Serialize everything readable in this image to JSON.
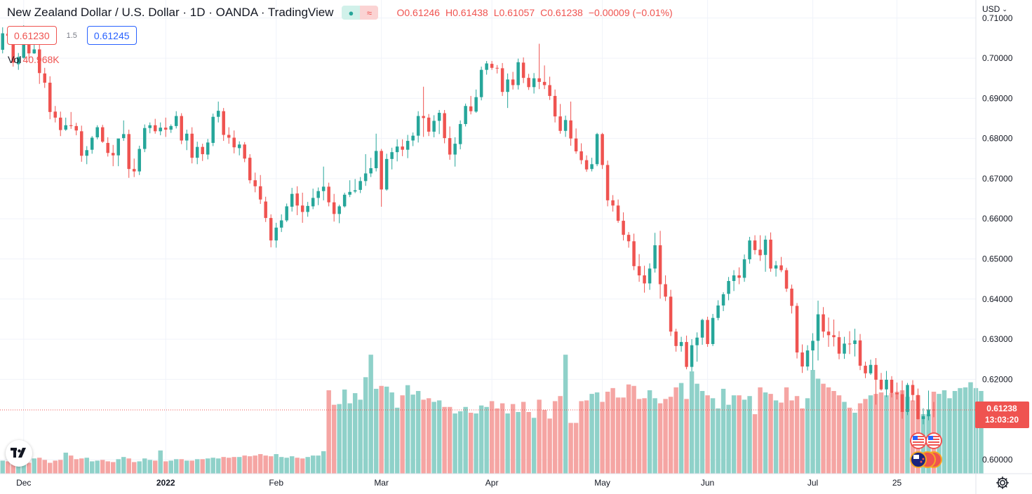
{
  "header": {
    "symbol_title": "New Zealand Dollar / U.S. Dollar · 1D · OANDA · TradingView",
    "ohlc": {
      "o_label": "O",
      "o_value": "0.61246",
      "h_label": "H",
      "h_value": "0.61438",
      "l_label": "L",
      "l_value": "0.61057",
      "c_label": "C",
      "c_value": "0.61238",
      "change": "−0.00009 (−0.01%)"
    },
    "status_icons": [
      "market-open-dot-icon",
      "wave-icon"
    ]
  },
  "quotes": {
    "sell_price": "0.61230",
    "spread": "1.5",
    "buy_price": "0.61245"
  },
  "volume_legend": {
    "label": "Vol",
    "value": "40.968K"
  },
  "currency_selector": {
    "label": "USD"
  },
  "price_axis": {
    "ticks": [
      "0.71000",
      "0.70000",
      "0.69000",
      "0.68000",
      "0.67000",
      "0.66000",
      "0.65000",
      "0.64000",
      "0.63000",
      "0.62000",
      "0.60000"
    ],
    "tick_values": [
      0.71,
      0.7,
      0.69,
      0.68,
      0.67,
      0.66,
      0.65,
      0.64,
      0.63,
      0.62,
      0.6
    ],
    "last_price_label": "0.61238",
    "countdown_label": "13:03:20",
    "last_price": 0.61238
  },
  "time_axis": {
    "labels": [
      "Dec",
      "2022",
      "Feb",
      "Mar",
      "Apr",
      "May",
      "Jun",
      "Jul",
      "25"
    ],
    "label_index": [
      4,
      31,
      52,
      72,
      93,
      114,
      134,
      154,
      170
    ]
  },
  "colors": {
    "up": "#26a69a",
    "down": "#ef5350",
    "up_vol": "#8fd1c9",
    "down_vol": "#f5a5a3",
    "grid": "#f0f3fa",
    "axis_text": "#131722"
  },
  "chart_data": {
    "type": "candlestick",
    "title": "New Zealand Dollar / U.S. Dollar",
    "interval": "1D",
    "y_range": [
      0.5965,
      0.7145
    ],
    "x_range": [
      -0.5,
      185
    ],
    "grid": true,
    "candles": [
      [
        0.7021,
        0.7077,
        0.7012,
        0.7062
      ],
      [
        0.7061,
        0.7074,
        0.7052,
        0.7056
      ],
      [
        0.7057,
        0.7064,
        0.6979,
        0.6989
      ],
      [
        0.6985,
        0.7013,
        0.6971,
        0.7003
      ],
      [
        0.7001,
        0.7082,
        0.6999,
        0.7058
      ],
      [
        0.7058,
        0.7063,
        0.6997,
        0.7012
      ],
      [
        0.7012,
        0.7043,
        0.7011,
        0.7022
      ],
      [
        0.7022,
        0.7045,
        0.6936,
        0.6963
      ],
      [
        0.6962,
        0.6976,
        0.6926,
        0.6939
      ],
      [
        0.6939,
        0.6955,
        0.6848,
        0.6866
      ],
      [
        0.6867,
        0.6881,
        0.684,
        0.6852
      ],
      [
        0.6852,
        0.6867,
        0.6806,
        0.6821
      ],
      [
        0.6822,
        0.6852,
        0.6819,
        0.6833
      ],
      [
        0.6833,
        0.6866,
        0.6824,
        0.6831
      ],
      [
        0.6831,
        0.6839,
        0.6808,
        0.682
      ],
      [
        0.6818,
        0.6832,
        0.6742,
        0.6757
      ],
      [
        0.6757,
        0.6781,
        0.6736,
        0.6771
      ],
      [
        0.6772,
        0.6806,
        0.6762,
        0.6802
      ],
      [
        0.6803,
        0.6833,
        0.6798,
        0.6828
      ],
      [
        0.6828,
        0.6834,
        0.6789,
        0.6792
      ],
      [
        0.6789,
        0.6803,
        0.6755,
        0.6764
      ],
      [
        0.6764,
        0.6784,
        0.6731,
        0.6758
      ],
      [
        0.6758,
        0.6795,
        0.6731,
        0.68
      ],
      [
        0.6801,
        0.6845,
        0.6794,
        0.6811
      ],
      [
        0.6811,
        0.6822,
        0.6702,
        0.6724
      ],
      [
        0.6724,
        0.675,
        0.6704,
        0.6718
      ],
      [
        0.6718,
        0.6782,
        0.6709,
        0.6774
      ],
      [
        0.6774,
        0.6835,
        0.6766,
        0.6826
      ],
      [
        0.6826,
        0.684,
        0.6813,
        0.6833
      ],
      [
        0.6833,
        0.6849,
        0.6812,
        0.6818
      ],
      [
        0.6818,
        0.684,
        0.6808,
        0.6827
      ],
      [
        0.6827,
        0.6852,
        0.6804,
        0.6822
      ],
      [
        0.6822,
        0.6835,
        0.6814,
        0.6831
      ],
      [
        0.6831,
        0.6868,
        0.6825,
        0.6856
      ],
      [
        0.6856,
        0.6863,
        0.6786,
        0.6795
      ],
      [
        0.6795,
        0.6822,
        0.6771,
        0.6812
      ],
      [
        0.6812,
        0.6828,
        0.6738,
        0.6752
      ],
      [
        0.6752,
        0.6792,
        0.6736,
        0.6779
      ],
      [
        0.6779,
        0.6787,
        0.6744,
        0.6761
      ],
      [
        0.676,
        0.6799,
        0.6748,
        0.679
      ],
      [
        0.6789,
        0.6862,
        0.6781,
        0.6854
      ],
      [
        0.6854,
        0.6892,
        0.684,
        0.6869
      ],
      [
        0.6868,
        0.6876,
        0.6794,
        0.6809
      ],
      [
        0.6809,
        0.6828,
        0.6787,
        0.6802
      ],
      [
        0.6802,
        0.682,
        0.6763,
        0.6778
      ],
      [
        0.6776,
        0.6793,
        0.6758,
        0.6785
      ],
      [
        0.6785,
        0.6791,
        0.6741,
        0.675
      ],
      [
        0.6752,
        0.6761,
        0.6688,
        0.6696
      ],
      [
        0.6696,
        0.6715,
        0.6666,
        0.6681
      ],
      [
        0.6681,
        0.6709,
        0.6637,
        0.6648
      ],
      [
        0.6643,
        0.6655,
        0.6592,
        0.6602
      ],
      [
        0.6602,
        0.6611,
        0.6529,
        0.6546
      ],
      [
        0.6546,
        0.659,
        0.6528,
        0.6578
      ],
      [
        0.6578,
        0.6611,
        0.6567,
        0.6596
      ],
      [
        0.6596,
        0.6638,
        0.6592,
        0.6631
      ],
      [
        0.663,
        0.6677,
        0.6618,
        0.6662
      ],
      [
        0.6663,
        0.6681,
        0.6609,
        0.6633
      ],
      [
        0.6633,
        0.6665,
        0.659,
        0.6617
      ],
      [
        0.6617,
        0.6642,
        0.6605,
        0.6632
      ],
      [
        0.6631,
        0.6675,
        0.6624,
        0.6652
      ],
      [
        0.6652,
        0.6678,
        0.6634,
        0.6669
      ],
      [
        0.6669,
        0.673,
        0.6646,
        0.668
      ],
      [
        0.668,
        0.669,
        0.6631,
        0.6641
      ],
      [
        0.6641,
        0.6662,
        0.6593,
        0.6612
      ],
      [
        0.6612,
        0.6635,
        0.6589,
        0.6631
      ],
      [
        0.6631,
        0.6665,
        0.6628,
        0.666
      ],
      [
        0.666,
        0.6696,
        0.6654,
        0.6667
      ],
      [
        0.6668,
        0.6699,
        0.6664,
        0.6671
      ],
      [
        0.6672,
        0.6704,
        0.6664,
        0.6694
      ],
      [
        0.6694,
        0.6761,
        0.6682,
        0.6713
      ],
      [
        0.6713,
        0.6752,
        0.6704,
        0.6726
      ],
      [
        0.6726,
        0.6812,
        0.6718,
        0.6769
      ],
      [
        0.6769,
        0.6774,
        0.663,
        0.6673
      ],
      [
        0.6673,
        0.6762,
        0.667,
        0.6749
      ],
      [
        0.6749,
        0.6777,
        0.6723,
        0.6766
      ],
      [
        0.6766,
        0.6798,
        0.6743,
        0.678
      ],
      [
        0.678,
        0.6798,
        0.6756,
        0.6772
      ],
      [
        0.6772,
        0.6809,
        0.6751,
        0.6794
      ],
      [
        0.6795,
        0.6815,
        0.6781,
        0.6807
      ],
      [
        0.6807,
        0.6868,
        0.679,
        0.6856
      ],
      [
        0.6856,
        0.6929,
        0.6804,
        0.6851
      ],
      [
        0.6852,
        0.6861,
        0.6806,
        0.6817
      ],
      [
        0.6817,
        0.6858,
        0.6803,
        0.6844
      ],
      [
        0.6844,
        0.6871,
        0.6811,
        0.6864
      ],
      [
        0.6863,
        0.6871,
        0.6788,
        0.6801
      ],
      [
        0.6801,
        0.683,
        0.6747,
        0.676
      ],
      [
        0.676,
        0.6803,
        0.673,
        0.6787
      ],
      [
        0.6786,
        0.6845,
        0.6773,
        0.6836
      ],
      [
        0.6836,
        0.6887,
        0.683,
        0.6881
      ],
      [
        0.688,
        0.6906,
        0.686,
        0.6868
      ],
      [
        0.6867,
        0.6922,
        0.6864,
        0.6903
      ],
      [
        0.6903,
        0.6979,
        0.6895,
        0.6971
      ],
      [
        0.6971,
        0.6993,
        0.6959,
        0.6987
      ],
      [
        0.6986,
        0.6993,
        0.6971,
        0.6976
      ],
      [
        0.6976,
        0.6983,
        0.6962,
        0.6975
      ],
      [
        0.6975,
        0.6988,
        0.6906,
        0.6916
      ],
      [
        0.6916,
        0.6962,
        0.6876,
        0.6947
      ],
      [
        0.6947,
        0.6966,
        0.6922,
        0.6933
      ],
      [
        0.6933,
        0.6999,
        0.6922,
        0.699
      ],
      [
        0.6989,
        0.7002,
        0.6938,
        0.6951
      ],
      [
        0.6951,
        0.6961,
        0.6921,
        0.6928
      ],
      [
        0.6928,
        0.6963,
        0.6912,
        0.695
      ],
      [
        0.695,
        0.7036,
        0.6923,
        0.6941
      ],
      [
        0.6941,
        0.6982,
        0.6923,
        0.6933
      ],
      [
        0.6933,
        0.6954,
        0.6896,
        0.6906
      ],
      [
        0.6906,
        0.6922,
        0.684,
        0.6855
      ],
      [
        0.6855,
        0.6886,
        0.6812,
        0.6819
      ],
      [
        0.6819,
        0.6857,
        0.6804,
        0.6846
      ],
      [
        0.6845,
        0.6892,
        0.6782,
        0.68
      ],
      [
        0.68,
        0.6825,
        0.6762,
        0.6768
      ],
      [
        0.6768,
        0.6788,
        0.6736,
        0.6746
      ],
      [
        0.6746,
        0.6758,
        0.6717,
        0.6723
      ],
      [
        0.6724,
        0.6752,
        0.6718,
        0.6736
      ],
      [
        0.6736,
        0.6814,
        0.6731,
        0.6811
      ],
      [
        0.6811,
        0.6814,
        0.6724,
        0.6734
      ],
      [
        0.6734,
        0.6745,
        0.6631,
        0.6646
      ],
      [
        0.6646,
        0.6659,
        0.6618,
        0.6633
      ],
      [
        0.6633,
        0.6648,
        0.659,
        0.6595
      ],
      [
        0.6595,
        0.6616,
        0.6546,
        0.656
      ],
      [
        0.656,
        0.6567,
        0.6528,
        0.6544
      ],
      [
        0.6544,
        0.6563,
        0.6472,
        0.6482
      ],
      [
        0.6482,
        0.6512,
        0.6443,
        0.6459
      ],
      [
        0.6459,
        0.6483,
        0.6416,
        0.6439
      ],
      [
        0.6439,
        0.6489,
        0.6423,
        0.6476
      ],
      [
        0.6476,
        0.6565,
        0.6466,
        0.6534
      ],
      [
        0.6534,
        0.657,
        0.6401,
        0.6437
      ],
      [
        0.6437,
        0.6459,
        0.6395,
        0.6406
      ],
      [
        0.6406,
        0.6423,
        0.6308,
        0.6319
      ],
      [
        0.6319,
        0.6326,
        0.6269,
        0.6283
      ],
      [
        0.6283,
        0.6306,
        0.6269,
        0.6293
      ],
      [
        0.6293,
        0.6309,
        0.6225,
        0.6231
      ],
      [
        0.6231,
        0.63,
        0.622,
        0.6285
      ],
      [
        0.6285,
        0.6317,
        0.6244,
        0.6304
      ],
      [
        0.6304,
        0.6351,
        0.6286,
        0.6348
      ],
      [
        0.6348,
        0.6356,
        0.6281,
        0.6288
      ],
      [
        0.6288,
        0.6363,
        0.6283,
        0.6353
      ],
      [
        0.6353,
        0.6397,
        0.6347,
        0.6384
      ],
      [
        0.6384,
        0.6417,
        0.637,
        0.6412
      ],
      [
        0.6413,
        0.6455,
        0.6397,
        0.6445
      ],
      [
        0.6445,
        0.6472,
        0.642,
        0.6459
      ],
      [
        0.6459,
        0.6479,
        0.6437,
        0.6453
      ],
      [
        0.6453,
        0.6511,
        0.6443,
        0.6499
      ],
      [
        0.6499,
        0.6555,
        0.6488,
        0.6546
      ],
      [
        0.6546,
        0.6559,
        0.6511,
        0.6522
      ],
      [
        0.6523,
        0.6559,
        0.6495,
        0.6509
      ],
      [
        0.651,
        0.6558,
        0.6468,
        0.6548
      ],
      [
        0.6548,
        0.6566,
        0.6468,
        0.6476
      ],
      [
        0.6476,
        0.6495,
        0.6456,
        0.6484
      ],
      [
        0.6484,
        0.6505,
        0.6467,
        0.6472
      ],
      [
        0.6472,
        0.6478,
        0.6418,
        0.6426
      ],
      [
        0.6426,
        0.6436,
        0.6364,
        0.6383
      ],
      [
        0.6383,
        0.639,
        0.6252,
        0.6267
      ],
      [
        0.6267,
        0.6287,
        0.6216,
        0.6232
      ],
      [
        0.6232,
        0.6285,
        0.6222,
        0.6272
      ],
      [
        0.6272,
        0.6315,
        0.6223,
        0.6296
      ],
      [
        0.6296,
        0.6396,
        0.6247,
        0.6362
      ],
      [
        0.6362,
        0.638,
        0.6304,
        0.6319
      ],
      [
        0.6319,
        0.6354,
        0.6281,
        0.631
      ],
      [
        0.631,
        0.6349,
        0.6282,
        0.6305
      ],
      [
        0.6305,
        0.632,
        0.625,
        0.6264
      ],
      [
        0.6264,
        0.6306,
        0.6251,
        0.6289
      ],
      [
        0.6289,
        0.632,
        0.6263,
        0.6288
      ],
      [
        0.6288,
        0.6326,
        0.6257,
        0.6297
      ],
      [
        0.6297,
        0.6313,
        0.6223,
        0.6234
      ],
      [
        0.6234,
        0.6244,
        0.6203,
        0.6215
      ],
      [
        0.6215,
        0.6249,
        0.6211,
        0.6236
      ],
      [
        0.6236,
        0.6253,
        0.6137,
        0.6199
      ],
      [
        0.6199,
        0.6216,
        0.6172,
        0.6175
      ],
      [
        0.6175,
        0.6221,
        0.6156,
        0.6199
      ],
      [
        0.6199,
        0.6208,
        0.6155,
        0.6166
      ],
      [
        0.6166,
        0.6192,
        0.615,
        0.6163
      ],
      [
        0.6163,
        0.6197,
        0.6102,
        0.6119
      ],
      [
        0.6119,
        0.6191,
        0.6111,
        0.6186
      ],
      [
        0.6186,
        0.6198,
        0.6145,
        0.6161
      ],
      [
        0.6161,
        0.6177,
        0.61,
        0.6101
      ],
      [
        0.6101,
        0.6128,
        0.6088,
        0.6108
      ],
      [
        0.6108,
        0.6172,
        0.6098,
        0.6125
      ],
      [
        0.61246,
        0.61438,
        0.61057,
        0.61238
      ]
    ],
    "volume": [
      18,
      17,
      21,
      19,
      18,
      15,
      21,
      22,
      19,
      15,
      18,
      19,
      29,
      25,
      20,
      21,
      22,
      17,
      18,
      19,
      17,
      16,
      20,
      23,
      21,
      16,
      17,
      21,
      19,
      18,
      32,
      17,
      18,
      20,
      20,
      18,
      18,
      20,
      20,
      21,
      22,
      21,
      23,
      22,
      23,
      23,
      25,
      24,
      25,
      27,
      25,
      24,
      27,
      23,
      22,
      24,
      22,
      21,
      23,
      25,
      25,
      31,
      115,
      95,
      96,
      116,
      97,
      111,
      102,
      133,
      164,
      117,
      121,
      120,
      112,
      91,
      108,
      122,
      109,
      114,
      102,
      104,
      99,
      101,
      92,
      92,
      83,
      86,
      92,
      84,
      83,
      94,
      92,
      100,
      90,
      97,
      83,
      96,
      85,
      99,
      85,
      77,
      102,
      88,
      76,
      100,
      107,
      164,
      70,
      70,
      100,
      101,
      110,
      112,
      99,
      113,
      118,
      105,
      105,
      123,
      121,
      103,
      104,
      115,
      104,
      97,
      103,
      106,
      119,
      125,
      103,
      141,
      124,
      114,
      108,
      104,
      90,
      117,
      95,
      108,
      108,
      102,
      107,
      82,
      119,
      112,
      110,
      101,
      98,
      119,
      101,
      107,
      90,
      104,
      143,
      131,
      124,
      119,
      114,
      108,
      99,
      91,
      84,
      97,
      103,
      108,
      110,
      112,
      108,
      111,
      113,
      115,
      106,
      101,
      108,
      82,
      82,
      113,
      110,
      115,
      104,
      114,
      118,
      119,
      126,
      118,
      114
    ],
    "volume_range": [
      0,
      170
    ]
  }
}
